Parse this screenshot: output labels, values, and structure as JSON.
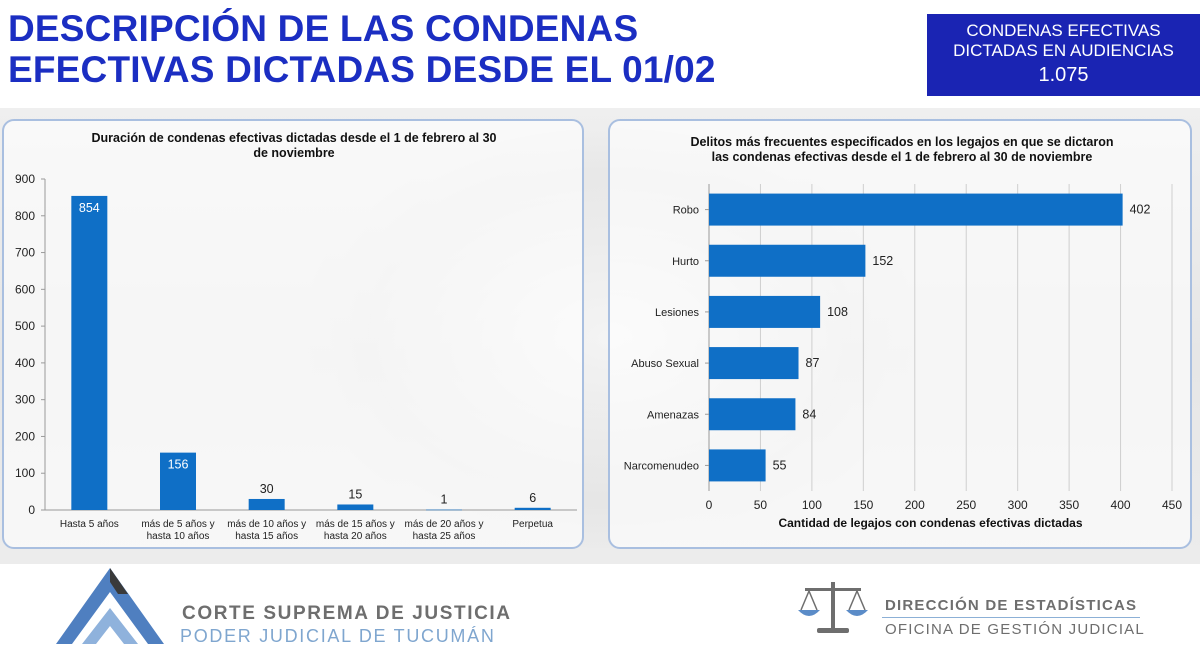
{
  "header": {
    "title": "DESCRIPCIÓN DE LAS CONDENAS\nEFECTIVAS DICTADAS DESDE EL 01/02",
    "kpi": {
      "label": "CONDENAS EFECTIVAS\nDICTADAS EN AUDIENCIAS",
      "value": "1.075"
    }
  },
  "colors": {
    "title": "#1b2ec2",
    "kpi_background": "#1a24b3",
    "bar": "#0f6fc6",
    "gridline": "#cfcfcf",
    "panel_border": "#a9bfe0"
  },
  "chart_data": [
    {
      "type": "bar",
      "orientation": "vertical",
      "title": "Duración de condenas efectivas dictadas desde el 1 de febrero al 30\nde noviembre",
      "categories": [
        "Hasta 5 años",
        "más de 5 años y\nhasta 10 años",
        "más de 10 años y\nhasta 15 años",
        "más de 15 años y\nhasta 20 años",
        "más de 20 años y\nhasta 25 años",
        "Perpetua"
      ],
      "values": [
        854,
        156,
        30,
        15,
        1,
        6
      ],
      "data_labels": [
        "854",
        "156",
        "30",
        "15",
        "1",
        "6"
      ],
      "xlabel": "",
      "ylabel": "",
      "ylim": [
        0,
        900
      ],
      "yticks": [
        "0",
        "100",
        "200",
        "300",
        "400",
        "500",
        "600",
        "700",
        "800",
        "900"
      ],
      "grid": false,
      "legend": "none"
    },
    {
      "type": "bar",
      "orientation": "horizontal",
      "title": "Delitos más frecuentes especificados en los legajos en que se dictaron\nlas condenas efectivas desde el 1 de febrero al 30 de noviembre",
      "categories": [
        "Robo",
        "Hurto",
        "Lesiones",
        "Abuso Sexual",
        "Amenazas",
        "Narcomenudeo"
      ],
      "values": [
        402,
        152,
        108,
        87,
        84,
        55
      ],
      "data_labels": [
        "402",
        "152",
        "108",
        "87",
        "84",
        "55"
      ],
      "xlabel": "Cantidad de legajos con condenas efectivas dictadas",
      "ylabel": "",
      "xlim": [
        0,
        450
      ],
      "xticks": [
        "0",
        "50",
        "100",
        "150",
        "200",
        "250",
        "300",
        "350",
        "400",
        "450"
      ],
      "grid": true,
      "legend": "none"
    }
  ],
  "footer": {
    "left_name": "CORTE SUPREMA DE JUSTICIA",
    "left_sub": "PODER JUDICIAL DE TUCUMÁN",
    "right_name": "DIRECCIÓN DE ESTADÍSTICAS",
    "right_sub": "OFICINA DE GESTIÓN JUDICIAL"
  }
}
